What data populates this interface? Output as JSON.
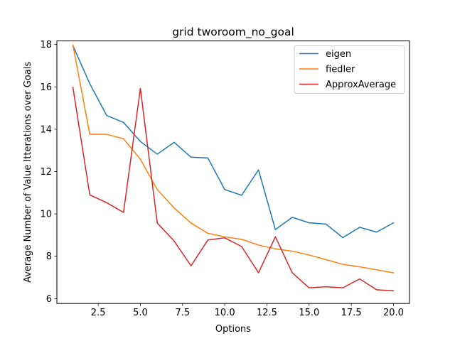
{
  "chart_data": {
    "type": "line",
    "title": "grid  tworoom_no_goal",
    "xlabel": "Options",
    "ylabel": "Average Number of Value Itterations over Goals",
    "xlim": [
      0.05,
      20.95
    ],
    "ylim": [
      5.77,
      18.17
    ],
    "xticks": [
      2.5,
      5.0,
      7.5,
      10.0,
      12.5,
      15.0,
      17.5,
      20.0
    ],
    "xtick_labels": [
      "2.5",
      "5.0",
      "7.5",
      "10.0",
      "12.5",
      "15.0",
      "17.5",
      "20.0"
    ],
    "yticks": [
      6,
      8,
      10,
      12,
      14,
      16,
      18
    ],
    "ytick_labels": [
      "6",
      "8",
      "10",
      "12",
      "14",
      "16",
      "18"
    ],
    "grid": false,
    "legend_position": "top-right",
    "x": [
      1,
      2,
      3,
      4,
      5,
      6,
      7,
      8,
      9,
      10,
      11,
      12,
      13,
      14,
      15,
      16,
      17,
      18,
      19,
      20
    ],
    "series": [
      {
        "name": "eigen",
        "color": "#1f77b4",
        "values": [
          17.95,
          16.15,
          14.65,
          14.32,
          13.42,
          12.82,
          13.38,
          12.68,
          12.64,
          11.15,
          10.88,
          12.08,
          9.26,
          9.84,
          9.58,
          9.52,
          8.88,
          9.37,
          9.14,
          9.58
        ]
      },
      {
        "name": "fiedler",
        "color": "#ff7f0e",
        "values": [
          17.98,
          13.76,
          13.76,
          13.55,
          12.58,
          11.15,
          10.28,
          9.57,
          9.08,
          8.92,
          8.8,
          8.53,
          8.35,
          8.24,
          8.06,
          7.84,
          7.62,
          7.5,
          7.36,
          7.22
        ]
      },
      {
        "name": "ApproxAverage",
        "color": "#d62728",
        "values": [
          15.98,
          10.9,
          10.53,
          10.07,
          15.93,
          9.57,
          8.72,
          7.55,
          8.77,
          8.87,
          8.46,
          7.22,
          8.92,
          7.22,
          6.51,
          6.56,
          6.51,
          6.93,
          6.42,
          6.37
        ]
      }
    ]
  }
}
